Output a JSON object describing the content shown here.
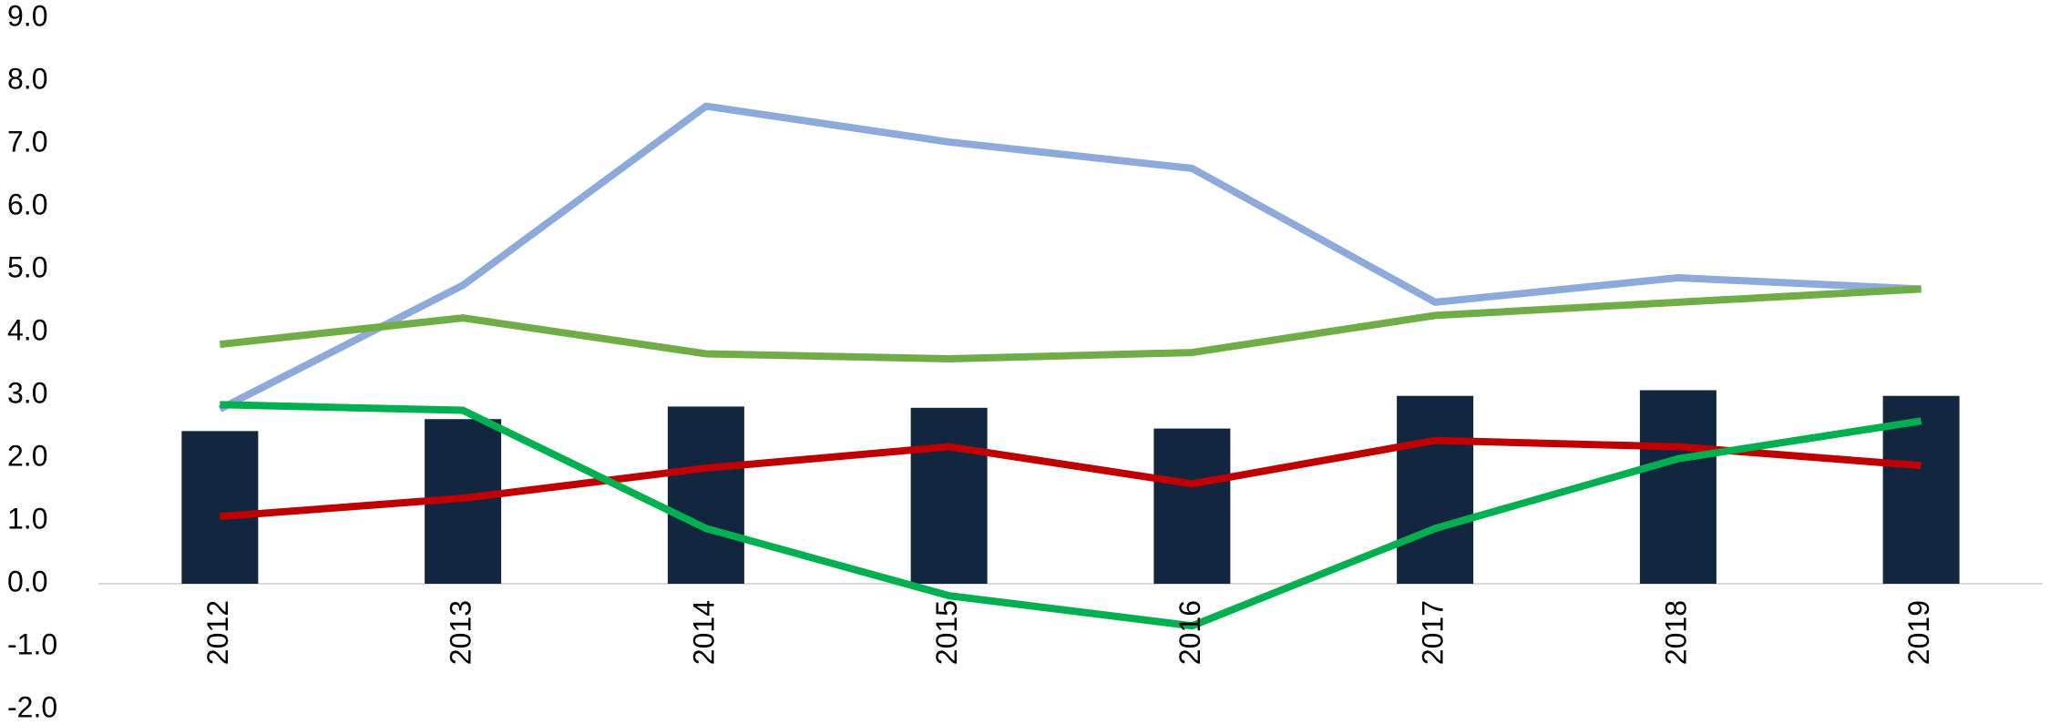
{
  "chart_data": {
    "type": "bar",
    "categories": [
      "2012",
      "2013",
      "2014",
      "2015",
      "2016",
      "2017",
      "2018",
      "2019"
    ],
    "series": [
      {
        "type": "bar",
        "color": "#12263f",
        "values": [
          2.43,
          2.62,
          2.82,
          2.8,
          2.47,
          2.99,
          3.08,
          2.99
        ]
      },
      {
        "type": "line",
        "color": "#8eaadb",
        "values": [
          2.78,
          4.75,
          7.6,
          7.03,
          6.61,
          4.48,
          4.87,
          4.69
        ]
      },
      {
        "type": "line",
        "color": "#70ad47",
        "values": [
          3.81,
          4.23,
          3.66,
          3.58,
          3.68,
          4.27,
          4.48,
          4.69
        ]
      },
      {
        "type": "line",
        "color": "#c00000",
        "values": [
          1.07,
          1.36,
          1.84,
          2.18,
          1.59,
          2.28,
          2.18,
          1.88
        ]
      },
      {
        "type": "line",
        "color": "#00b050",
        "values": [
          2.85,
          2.76,
          0.88,
          -0.19,
          -0.67,
          0.88,
          1.99,
          2.59
        ]
      }
    ],
    "ylim": [
      -2,
      9
    ],
    "yticks": [
      {
        "value": -2,
        "label": "-2.0"
      },
      {
        "value": -1,
        "label": "-1.0"
      },
      {
        "value": 0,
        "label": "0.0"
      },
      {
        "value": 1,
        "label": "1.0"
      },
      {
        "value": 2,
        "label": "2.0"
      },
      {
        "value": 3,
        "label": "3.0"
      },
      {
        "value": 4,
        "label": "4.0"
      },
      {
        "value": 5,
        "label": "5.0"
      },
      {
        "value": 6,
        "label": "6.0"
      },
      {
        "value": 7,
        "label": "7.0"
      },
      {
        "value": 8,
        "label": "8.0"
      },
      {
        "value": 9,
        "label": "9.0"
      }
    ],
    "grid": false
  }
}
